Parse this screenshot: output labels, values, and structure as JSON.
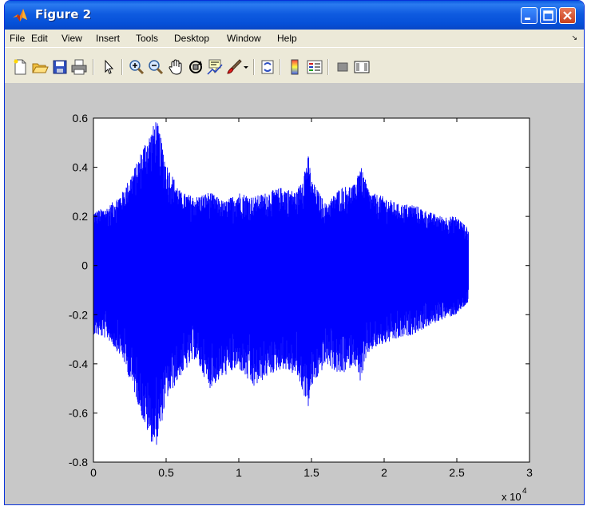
{
  "window": {
    "title": "Figure 2",
    "buttons": [
      "minimize",
      "maximize",
      "close"
    ]
  },
  "menubar": {
    "items": [
      {
        "label": "File"
      },
      {
        "label": "Edit"
      },
      {
        "label": "View"
      },
      {
        "label": "Insert"
      },
      {
        "label": "Tools"
      },
      {
        "label": "Desktop"
      },
      {
        "label": "Window"
      },
      {
        "label": "Help"
      }
    ],
    "overflow_icon": "dock-arrow-icon"
  },
  "toolbar": {
    "icons": [
      "new-figure-icon",
      "open-file-icon",
      "save-icon",
      "print-icon",
      "pointer-icon",
      "zoom-in-icon",
      "zoom-out-icon",
      "pan-hand-icon",
      "rotate-3d-icon",
      "data-cursor-icon",
      "brush-icon",
      "link-plot-icon",
      "colorbar-icon",
      "legend-icon",
      "hide-plot-tools-icon",
      "show-plot-tools-icon"
    ]
  },
  "colors": {
    "signal": "#0000ff",
    "figure_background": "#c8c8c8",
    "axes_background": "#ffffff"
  },
  "chart_data": {
    "type": "line",
    "title": "",
    "xlabel": "",
    "ylabel": "",
    "xlim": [
      0,
      30000
    ],
    "ylim": [
      -0.8,
      0.6
    ],
    "x_ticks": [
      "0",
      "0.5",
      "1",
      "1.5",
      "2",
      "2.5",
      "3"
    ],
    "y_ticks": [
      "0.6",
      "0.4",
      "0.2",
      "0",
      "-0.2",
      "-0.4",
      "-0.6",
      "-0.8"
    ],
    "x_multiplier": "x 10",
    "x_multiplier_exponent": "4",
    "grid": false,
    "legend": "none",
    "series": [
      {
        "sample_count": 25800,
        "envelope_x": [
          0,
          1000,
          2000,
          3000,
          3500,
          4000,
          4300,
          4500,
          5000,
          6000,
          7000,
          8000,
          9000,
          10000,
          11000,
          12000,
          13000,
          14000,
          14800,
          15000,
          16000,
          17000,
          18000,
          18300,
          19000,
          20000,
          21000,
          22000,
          23000,
          24000,
          25000,
          25800
        ],
        "envelope_upper": [
          0.22,
          0.24,
          0.3,
          0.42,
          0.5,
          0.55,
          0.6,
          0.56,
          0.42,
          0.3,
          0.28,
          0.3,
          0.26,
          0.3,
          0.28,
          0.3,
          0.32,
          0.3,
          0.45,
          0.35,
          0.25,
          0.32,
          0.33,
          0.42,
          0.3,
          0.28,
          0.25,
          0.25,
          0.22,
          0.2,
          0.2,
          0.15
        ],
        "envelope_lower": [
          -0.28,
          -0.3,
          -0.38,
          -0.55,
          -0.65,
          -0.72,
          -0.74,
          -0.7,
          -0.55,
          -0.45,
          -0.38,
          -0.5,
          -0.45,
          -0.42,
          -0.5,
          -0.45,
          -0.42,
          -0.45,
          -0.58,
          -0.5,
          -0.4,
          -0.45,
          -0.4,
          -0.48,
          -0.35,
          -0.32,
          -0.3,
          -0.28,
          -0.25,
          -0.22,
          -0.2,
          -0.15
        ]
      }
    ]
  }
}
